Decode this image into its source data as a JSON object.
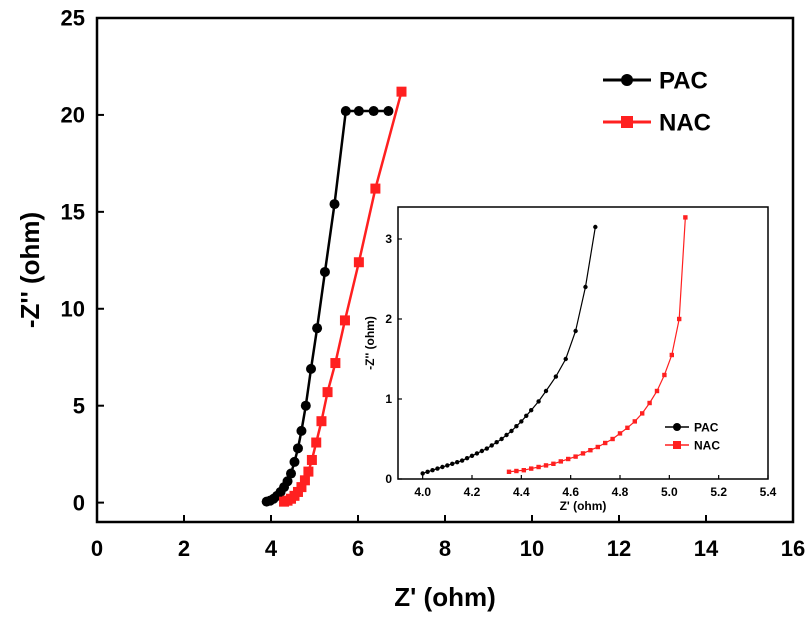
{
  "chart_data": [
    {
      "type": "line",
      "xlabel": "Z' (ohm)",
      "ylabel": "-Z'' (ohm)",
      "xlim": [
        0,
        16
      ],
      "ylim": [
        -1,
        25
      ],
      "xticks": [
        0,
        2,
        4,
        6,
        8,
        10,
        12,
        14,
        16
      ],
      "yticks": [
        0,
        5,
        10,
        15,
        20,
        25
      ],
      "legend_position": "top-right",
      "series": [
        {
          "name": "PAC",
          "color": "#000000",
          "marker": "circle",
          "x": [
            3.9,
            3.98,
            4.06,
            4.14,
            4.22,
            4.3,
            4.38,
            4.46,
            4.54,
            4.62,
            4.7,
            4.8,
            4.92,
            5.06,
            5.24,
            5.46,
            5.72,
            6.02,
            6.36,
            6.7
          ],
          "y": [
            0.05,
            0.1,
            0.2,
            0.35,
            0.55,
            0.8,
            1.1,
            1.5,
            2.1,
            2.8,
            3.7,
            5.0,
            6.9,
            9.0,
            11.9,
            15.4,
            20.2,
            20.2,
            20.2,
            20.2
          ]
        },
        {
          "name": "NAC",
          "color": "#ff2020",
          "marker": "square",
          "x": [
            4.3,
            4.38,
            4.46,
            4.54,
            4.62,
            4.7,
            4.78,
            4.86,
            4.94,
            5.04,
            5.16,
            5.3,
            5.48,
            5.7,
            6.02,
            6.4,
            7.0
          ],
          "y": [
            0.05,
            0.1,
            0.2,
            0.35,
            0.55,
            0.8,
            1.15,
            1.6,
            2.2,
            3.1,
            4.2,
            5.7,
            7.2,
            9.4,
            12.4,
            16.2,
            21.2
          ]
        }
      ]
    },
    {
      "type": "line",
      "xlabel": "Z' (ohm)",
      "ylabel": "-Z'' (ohm)",
      "xlim": [
        3.9,
        5.4
      ],
      "ylim": [
        0,
        3.4
      ],
      "xticks": [
        "4.0",
        "4.2",
        "4.4",
        "4.6",
        "4.8",
        "5.0",
        "5.2",
        "5.4"
      ],
      "yticks": [
        0,
        1,
        2,
        3
      ],
      "legend_position": "bottom-right",
      "series": [
        {
          "name": "PAC",
          "color": "#000000",
          "marker": "circle",
          "x": [
            4.0,
            4.02,
            4.04,
            4.06,
            4.08,
            4.1,
            4.12,
            4.14,
            4.16,
            4.18,
            4.2,
            4.22,
            4.24,
            4.26,
            4.28,
            4.3,
            4.32,
            4.34,
            4.36,
            4.38,
            4.4,
            4.42,
            4.44,
            4.47,
            4.5,
            4.54,
            4.58,
            4.62,
            4.66,
            4.7
          ],
          "y": [
            0.07,
            0.09,
            0.11,
            0.13,
            0.15,
            0.17,
            0.19,
            0.21,
            0.23,
            0.26,
            0.29,
            0.32,
            0.35,
            0.38,
            0.42,
            0.46,
            0.5,
            0.55,
            0.6,
            0.66,
            0.72,
            0.79,
            0.86,
            0.97,
            1.1,
            1.28,
            1.5,
            1.85,
            2.4,
            3.15
          ]
        },
        {
          "name": "NAC",
          "color": "#ff2020",
          "marker": "square",
          "x": [
            4.35,
            4.38,
            4.41,
            4.44,
            4.47,
            4.5,
            4.53,
            4.56,
            4.59,
            4.62,
            4.65,
            4.68,
            4.71,
            4.74,
            4.77,
            4.8,
            4.83,
            4.86,
            4.89,
            4.92,
            4.95,
            4.98,
            5.01,
            5.04,
            5.065
          ],
          "y": [
            0.09,
            0.1,
            0.11,
            0.13,
            0.15,
            0.17,
            0.19,
            0.22,
            0.25,
            0.28,
            0.32,
            0.36,
            0.4,
            0.45,
            0.5,
            0.57,
            0.64,
            0.72,
            0.82,
            0.95,
            1.1,
            1.3,
            1.55,
            2.0,
            3.27
          ]
        }
      ]
    }
  ]
}
